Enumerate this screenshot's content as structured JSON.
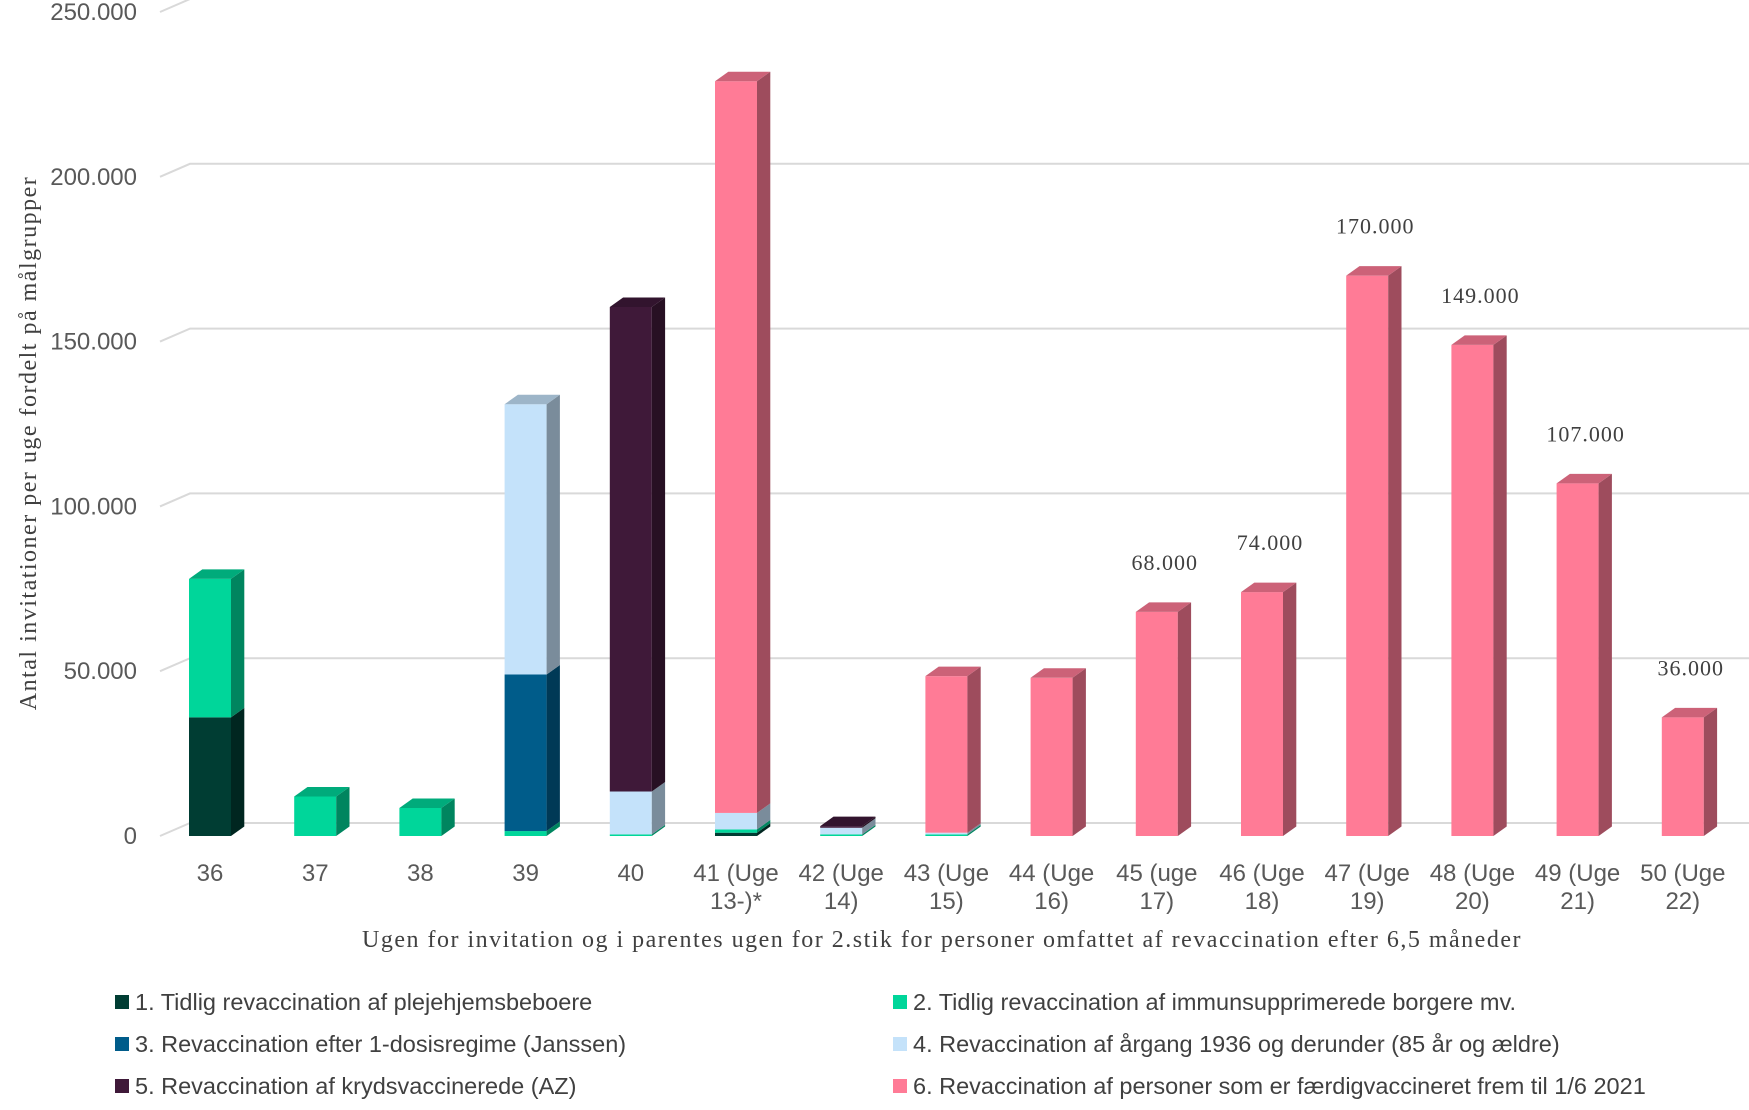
{
  "chart_data": {
    "type": "bar",
    "stacked": true,
    "style": "3d-columns",
    "ylabel": "Antal invitationer per uge fordelt på målgrupper",
    "xlabel": "Ugen for invitation og i parentes ugen for 2.stik for personer omfattet af revaccination efter 6,5 måneder",
    "ylim": [
      0,
      250000
    ],
    "yticks": [
      {
        "value": 0,
        "label": "0"
      },
      {
        "value": 50000,
        "label": "50.000"
      },
      {
        "value": 100000,
        "label": "100.000"
      },
      {
        "value": 150000,
        "label": "150.000"
      },
      {
        "value": 200000,
        "label": "200.000"
      },
      {
        "value": 250000,
        "label": "250.000"
      }
    ],
    "grid": true,
    "legend_position": "bottom",
    "categories": [
      [
        "36"
      ],
      [
        "37"
      ],
      [
        "38"
      ],
      [
        "39"
      ],
      [
        "40"
      ],
      [
        "41 (Uge",
        "13-)*"
      ],
      [
        "42 (Uge",
        "14)"
      ],
      [
        "43 (Uge",
        "15)"
      ],
      [
        "44 (Uge",
        "16)"
      ],
      [
        "45 (uge",
        "17)"
      ],
      [
        "46 (Uge",
        "18)"
      ],
      [
        "47 (Uge",
        "19)"
      ],
      [
        "48 (Uge",
        "20)"
      ],
      [
        "49 (Uge",
        "21)"
      ],
      [
        "50 (Uge",
        "22)"
      ]
    ],
    "series": [
      {
        "name": "1. Tidlig revaccination af plejehjemsbeboere",
        "color": "#003D33",
        "values": [
          36000,
          0,
          0,
          0,
          0,
          1000,
          0,
          0,
          0,
          0,
          0,
          0,
          0,
          0,
          0
        ]
      },
      {
        "name": "2. Tidlig revaccination af immunsupprimerede borgere mv.",
        "color": "#00D69A",
        "values": [
          42000,
          12000,
          8500,
          1500,
          500,
          1000,
          500,
          500,
          0,
          0,
          0,
          0,
          0,
          0,
          0
        ]
      },
      {
        "name": "3. Revaccination efter 1-dosisregime (Janssen)",
        "color": "#005C8A",
        "values": [
          0,
          0,
          0,
          47500,
          0,
          0,
          0,
          0,
          0,
          0,
          0,
          0,
          0,
          0,
          0
        ]
      },
      {
        "name": "4. Revaccination af årgang 1936 og derunder (85 år og ældre)",
        "color": "#C4E2FA",
        "values": [
          0,
          0,
          0,
          82000,
          13000,
          5000,
          2000,
          500,
          0,
          0,
          0,
          0,
          0,
          0,
          0
        ]
      },
      {
        "name": "5. Revaccination af krydsvaccinerede (AZ)",
        "color": "#3F1939",
        "values": [
          0,
          0,
          0,
          0,
          147000,
          0,
          500,
          0,
          0,
          0,
          0,
          0,
          0,
          0,
          0
        ]
      },
      {
        "name": "6. Revaccination af personer som er færdigvaccineret frem til 1/6 2021",
        "color": "#FF7B96",
        "values": [
          0,
          0,
          0,
          0,
          0,
          222000,
          0,
          47500,
          48000,
          68000,
          74000,
          170000,
          149000,
          107000,
          36000
        ]
      }
    ],
    "data_labels": [
      {
        "category_index": 9,
        "text": "68.000"
      },
      {
        "category_index": 10,
        "text": "74.000"
      },
      {
        "category_index": 11,
        "text": "170.000"
      },
      {
        "category_index": 12,
        "text": "149.000"
      },
      {
        "category_index": 13,
        "text": "107.000"
      },
      {
        "category_index": 14,
        "text": "36.000"
      }
    ]
  }
}
